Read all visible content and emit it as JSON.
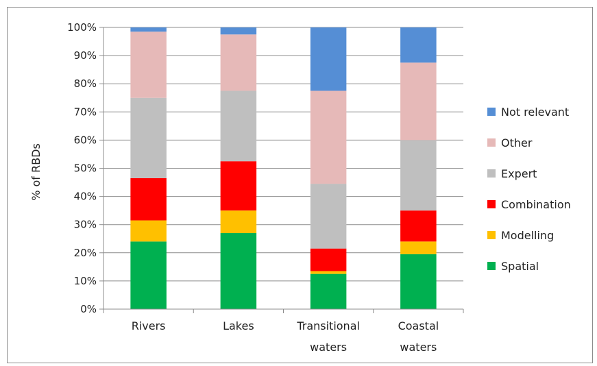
{
  "chart_data": {
    "type": "bar",
    "stacked": true,
    "title": "",
    "xlabel": "",
    "ylabel": "% of RBDs",
    "ylim": [
      0,
      100
    ],
    "yticks": [
      "0%",
      "10%",
      "20%",
      "30%",
      "40%",
      "50%",
      "60%",
      "70%",
      "80%",
      "90%",
      "100%"
    ],
    "categories": [
      [
        "Rivers"
      ],
      [
        "Lakes"
      ],
      [
        "Transitional",
        "waters"
      ],
      [
        "Coastal",
        "waters"
      ]
    ],
    "series": [
      {
        "name": "Spatial",
        "color": "#00b050",
        "values": [
          24,
          27,
          12.5,
          19.5
        ]
      },
      {
        "name": "Modelling",
        "color": "#ffc000",
        "values": [
          7.5,
          8,
          1,
          4.5
        ]
      },
      {
        "name": "Combination",
        "color": "#ff0000",
        "values": [
          15,
          17.5,
          8,
          11
        ]
      },
      {
        "name": "Expert",
        "color": "#bfbfbf",
        "values": [
          28.5,
          25,
          23,
          25
        ]
      },
      {
        "name": "Other",
        "color": "#e6b9b8",
        "values": [
          23.5,
          20,
          33,
          27.5
        ]
      },
      {
        "name": "Not relevant",
        "color": "#558ed5",
        "values": [
          1.5,
          2.5,
          22.5,
          12.5
        ]
      }
    ],
    "legend_position": "right",
    "grid": true
  }
}
